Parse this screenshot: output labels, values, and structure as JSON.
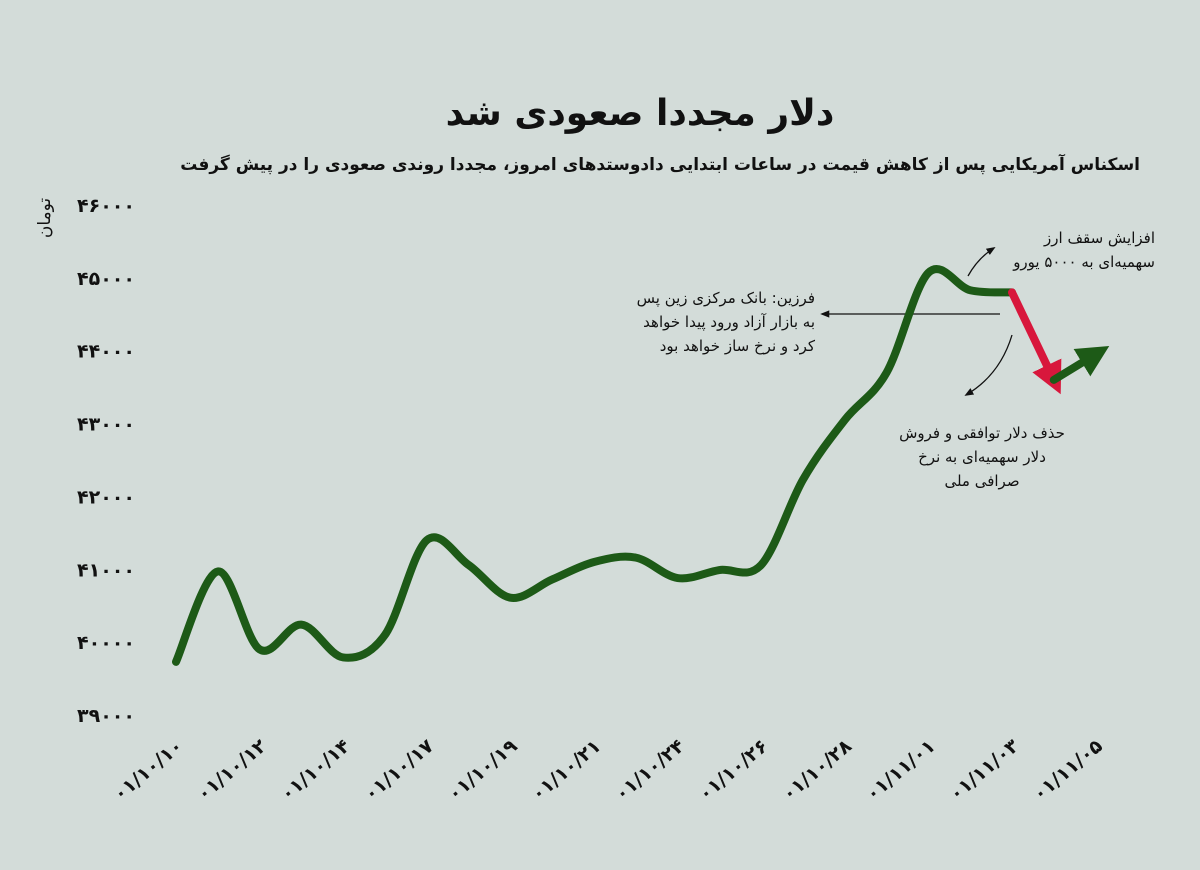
{
  "chart_data": {
    "type": "line",
    "title": "دلار مجددا صعودی شد",
    "subtitle": "اسکناس آمریکایی پس از کاهش قیمت در ساعات ابتدایی دادوستدهای امروز، مجددا روندی صعودی را در پیش گرفت",
    "y_label": "تومان",
    "categories": [
      "۰۱/۱۰/۱۰",
      null,
      "۰۱/۱۰/۱۲",
      null,
      "۰۱/۱۰/۱۴",
      null,
      "۰۱/۱۰/۱۷",
      null,
      "۰۱/۱۰/۱۹",
      null,
      "۰۱/۱۰/۲۱",
      null,
      "۰۱/۱۰/۲۴",
      null,
      "۰۱/۱۰/۲۶",
      null,
      "۰۱/۱۰/۲۸",
      null,
      "۰۱/۱۱/۰۱",
      null,
      "۰۱/۱۱/۰۳",
      null,
      "۰۱/۱۱/۰۵"
    ],
    "series": [
      {
        "color": "#1d5a17",
        "values": [
          39730,
          40970,
          39900,
          40240,
          39790,
          40100,
          41400,
          41060,
          40610,
          40860,
          41100,
          41160,
          40880,
          40990,
          41060,
          42230,
          43050,
          43700,
          45070,
          44830,
          44800,
          null,
          null
        ]
      },
      {
        "color": "#d8173c",
        "values": [
          null,
          null,
          null,
          null,
          null,
          null,
          null,
          null,
          null,
          null,
          null,
          null,
          null,
          null,
          null,
          null,
          null,
          null,
          null,
          null,
          44800,
          43600,
          null
        ]
      },
      {
        "color": "#1d5a17",
        "values": [
          null,
          null,
          null,
          null,
          null,
          null,
          null,
          null,
          null,
          null,
          null,
          null,
          null,
          null,
          null,
          null,
          null,
          null,
          null,
          null,
          null,
          43600,
          43950
        ]
      }
    ],
    "ylim": [
      39000,
      46000
    ],
    "yticks": [
      {
        "value": 39000,
        "label": "۳۹۰۰۰"
      },
      {
        "value": 40000,
        "label": "۴۰۰۰۰"
      },
      {
        "value": 41000,
        "label": "۴۱۰۰۰"
      },
      {
        "value": 42000,
        "label": "۴۲۰۰۰"
      },
      {
        "value": 43000,
        "label": "۴۳۰۰۰"
      },
      {
        "value": 44000,
        "label": "۴۴۰۰۰"
      },
      {
        "value": 45000,
        "label": "۴۵۰۰۰"
      },
      {
        "value": 46000,
        "label": "۴۶۰۰۰"
      }
    ],
    "annotations": [
      {
        "lines": [
          "افزایش سقف ارز",
          "سهمیه‌ای به ۵۰۰۰ یورو"
        ]
      },
      {
        "lines": [
          "فرزین: بانک مرکزی زین پس",
          "به بازار آزاد ورود پیدا خواهد",
          "کرد و نرخ ساز خواهد بود"
        ]
      },
      {
        "lines": [
          "حذف دلار توافقی و فروش",
          "دلار سهمیه‌ای به نرخ",
          "صرافی ملی"
        ]
      }
    ]
  }
}
